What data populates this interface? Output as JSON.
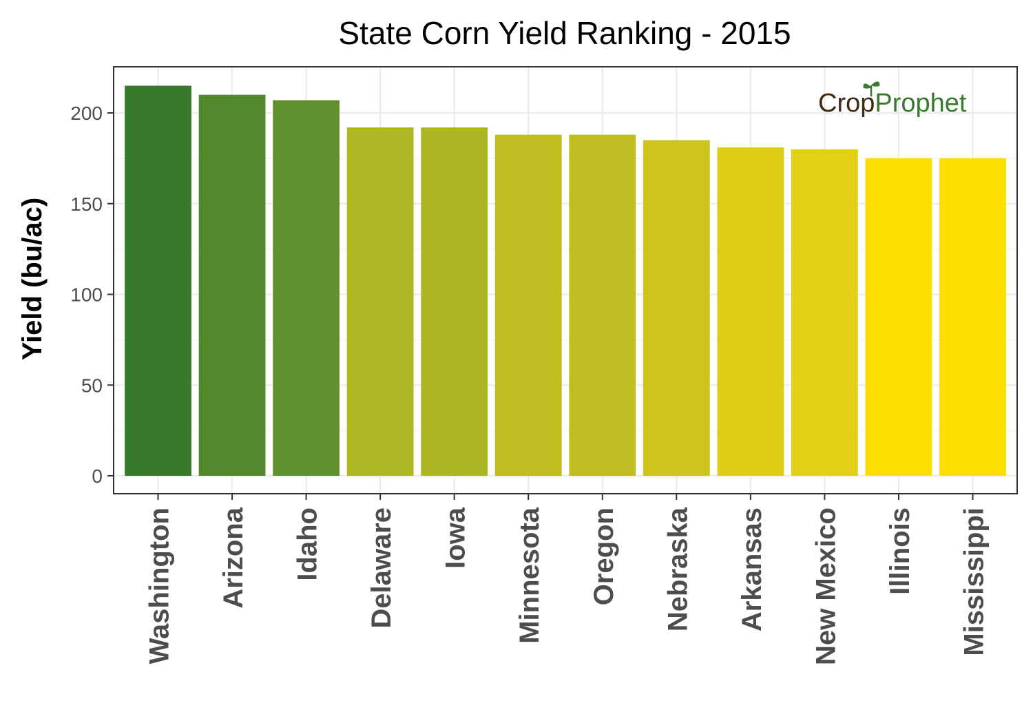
{
  "chart_data": {
    "type": "bar",
    "title": "State Corn Yield Ranking - 2015",
    "xlabel": "",
    "ylabel": "Yield (bu/ac)",
    "ylim": [
      0,
      225
    ],
    "yticks": [
      0,
      50,
      100,
      150,
      200
    ],
    "ytick_labels": [
      "0",
      "50",
      "100",
      "150",
      "200"
    ],
    "grid": true,
    "categories": [
      "Washington",
      "Arizona",
      "Idaho",
      "Delaware",
      "Iowa",
      "Minnesota",
      "Oregon",
      "Nebraska",
      "Arkansas",
      "New Mexico",
      "Illinois",
      "Mississippi"
    ],
    "values": [
      215,
      210,
      207,
      192,
      192,
      188,
      188,
      185,
      181,
      180,
      175,
      175
    ],
    "colors": [
      "#377a2b",
      "#52882e",
      "#61912e",
      "#aeb623",
      "#adb523",
      "#c1bc1f",
      "#c1bc1f",
      "#cdc41b",
      "#ddcd16",
      "#e2d015",
      "#fede00",
      "#fede00"
    ],
    "legend": "none"
  },
  "logo": {
    "crop_text": "Crop",
    "prophet_text": "Prophet",
    "crop_color": "#3f2a14",
    "prophet_color": "#3a7a2e",
    "icon": "sprout-icon"
  }
}
